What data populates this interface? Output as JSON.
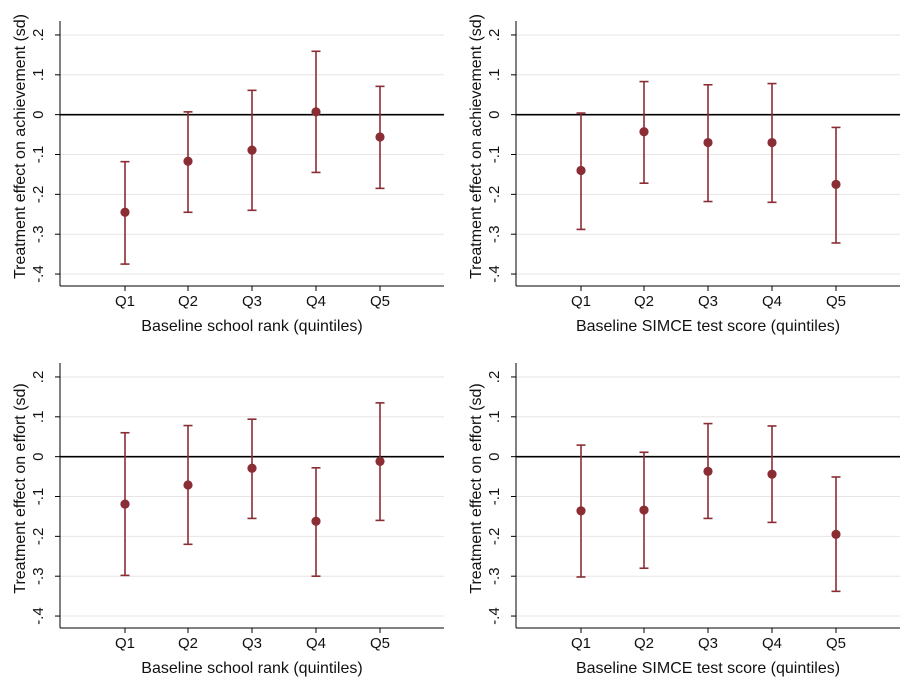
{
  "style": {
    "marker_color": "#8b2d34",
    "grid_color": "#e6e6e6",
    "axis_color": "#000000"
  },
  "chart_data": [
    {
      "type": "scatter",
      "subtype": "errorbar",
      "xlabel": "Baseline school rank (quintiles)",
      "ylabel": "Treatment effect on achievement (sd)",
      "categories": [
        "Q1",
        "Q2",
        "Q3",
        "Q4",
        "Q5"
      ],
      "ylim": [
        -0.43,
        0.23
      ],
      "yticks": [
        0.2,
        0.1,
        0,
        -0.1,
        -0.2,
        -0.3,
        -0.4
      ],
      "ytick_labels": [
        ".2",
        ".1",
        "0",
        "-.1",
        "-.2",
        "-.3",
        "-.4"
      ],
      "grid": true,
      "reference_line": 0,
      "values": [
        -0.245,
        -0.117,
        -0.089,
        0.007,
        -0.056
      ],
      "lower": [
        -0.375,
        -0.245,
        -0.24,
        -0.145,
        -0.185
      ],
      "upper": [
        -0.118,
        0.007,
        0.061,
        0.159,
        0.071
      ]
    },
    {
      "type": "scatter",
      "subtype": "errorbar",
      "xlabel": "Baseline SIMCE test score (quintiles)",
      "ylabel": "Treatment effect on achievement (sd)",
      "categories": [
        "Q1",
        "Q2",
        "Q3",
        "Q4",
        "Q5"
      ],
      "ylim": [
        -0.43,
        0.23
      ],
      "yticks": [
        0.2,
        0.1,
        0,
        -0.1,
        -0.2,
        -0.3,
        -0.4
      ],
      "ytick_labels": [
        ".2",
        ".1",
        "0",
        "-.1",
        "-.2",
        "-.3",
        "-.4"
      ],
      "grid": true,
      "reference_line": 0,
      "values": [
        -0.14,
        -0.043,
        -0.07,
        -0.07,
        -0.175
      ],
      "lower": [
        -0.288,
        -0.172,
        -0.218,
        -0.22,
        -0.322
      ],
      "upper": [
        0.004,
        0.083,
        0.075,
        0.078,
        -0.032
      ]
    },
    {
      "type": "scatter",
      "subtype": "errorbar",
      "xlabel": "Baseline school rank (quintiles)",
      "ylabel": "Treatment effect on effort (sd)",
      "categories": [
        "Q1",
        "Q2",
        "Q3",
        "Q4",
        "Q5"
      ],
      "ylim": [
        -0.43,
        0.23
      ],
      "yticks": [
        0.2,
        0.1,
        0,
        -0.1,
        -0.2,
        -0.3,
        -0.4
      ],
      "ytick_labels": [
        ".2",
        ".1",
        "0",
        "-.1",
        "-.2",
        "-.3",
        "-.4"
      ],
      "grid": true,
      "reference_line": 0,
      "values": [
        -0.119,
        -0.071,
        -0.029,
        -0.162,
        -0.012
      ],
      "lower": [
        -0.298,
        -0.22,
        -0.155,
        -0.3,
        -0.16
      ],
      "upper": [
        0.06,
        0.078,
        0.094,
        -0.028,
        0.135
      ]
    },
    {
      "type": "scatter",
      "subtype": "errorbar",
      "xlabel": "Baseline SIMCE test score (quintiles)",
      "ylabel": "Treatment effect on effort (sd)",
      "categories": [
        "Q1",
        "Q2",
        "Q3",
        "Q4",
        "Q5"
      ],
      "ylim": [
        -0.43,
        0.23
      ],
      "yticks": [
        0.2,
        0.1,
        0,
        -0.1,
        -0.2,
        -0.3,
        -0.4
      ],
      "ytick_labels": [
        ".2",
        ".1",
        "0",
        "-.1",
        "-.2",
        "-.3",
        "-.4"
      ],
      "grid": true,
      "reference_line": 0,
      "values": [
        -0.136,
        -0.134,
        -0.037,
        -0.044,
        -0.195
      ],
      "lower": [
        -0.302,
        -0.28,
        -0.155,
        -0.165,
        -0.338
      ],
      "upper": [
        0.029,
        0.011,
        0.083,
        0.077,
        -0.051
      ]
    }
  ]
}
